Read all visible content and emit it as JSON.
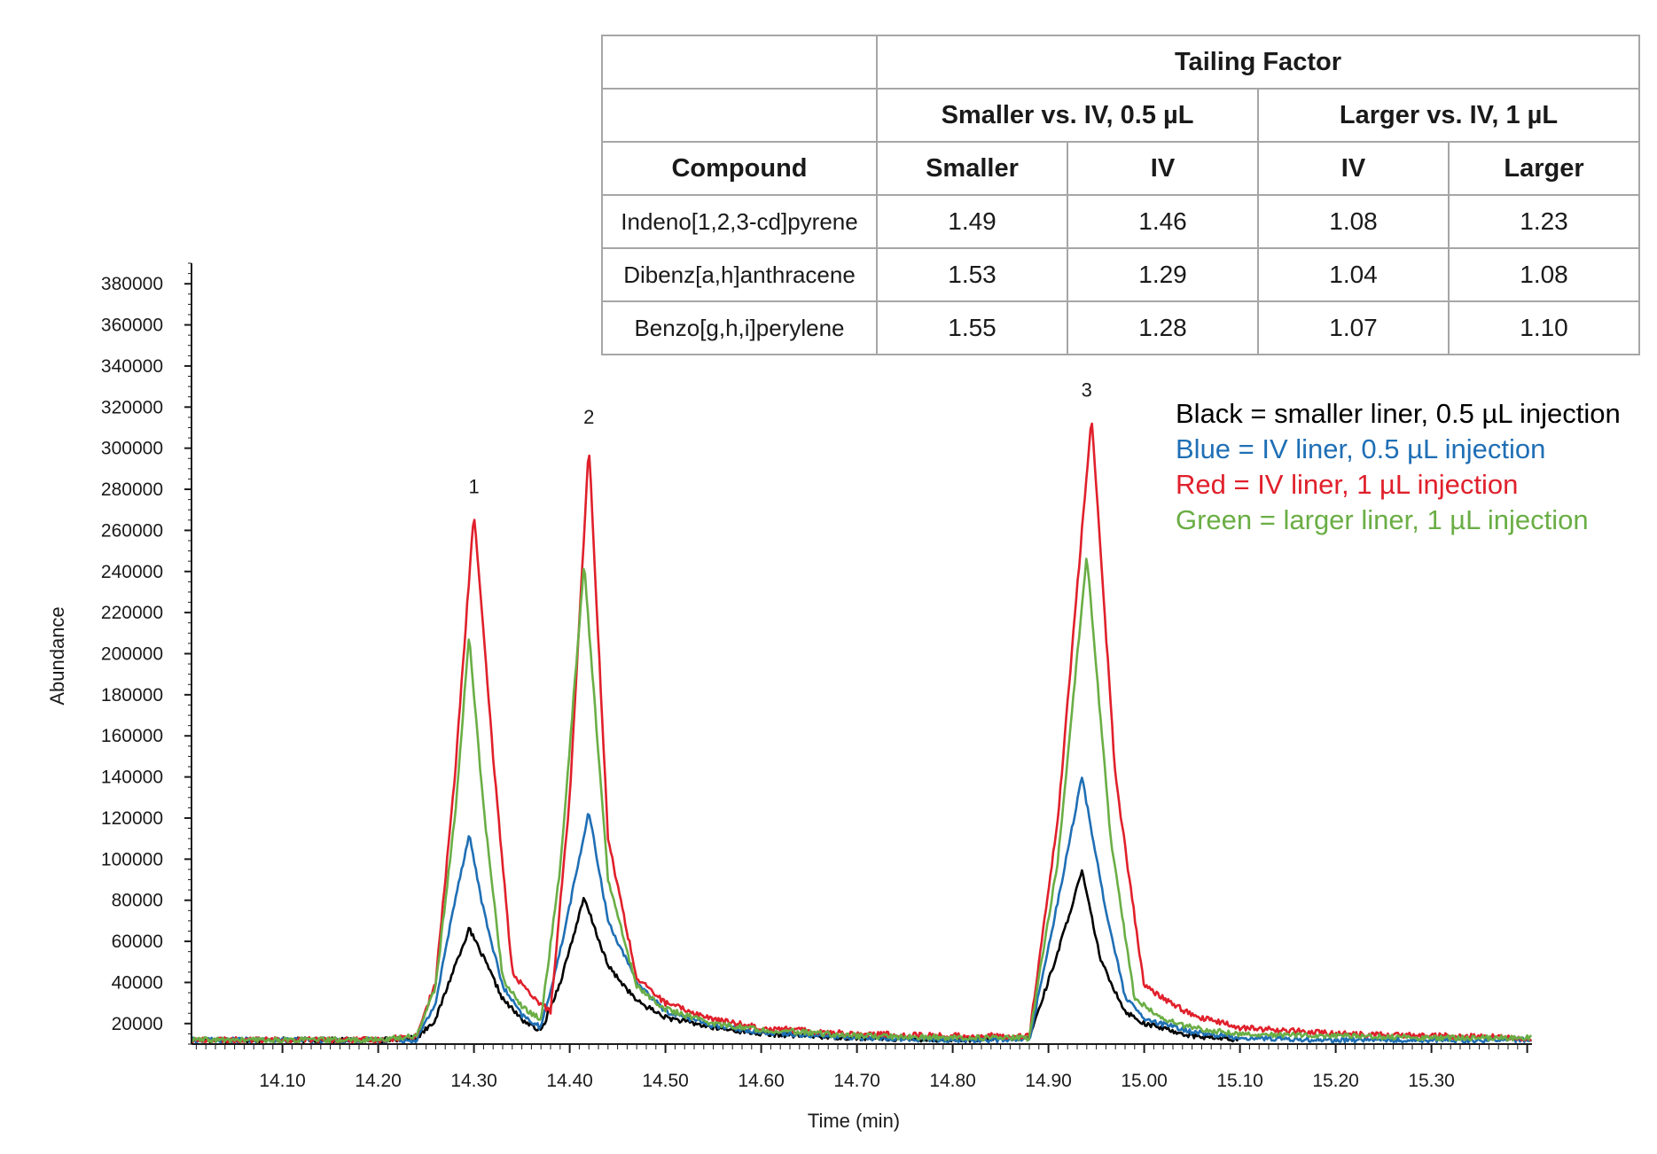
{
  "table": {
    "group_header": "Tailing Factor",
    "subgroups": [
      "Smaller vs. IV, 0.5 µL",
      "Larger vs. IV, 1 µL"
    ],
    "columns": [
      "Compound",
      "Smaller",
      "IV",
      "IV",
      "Larger"
    ],
    "rows": [
      {
        "compound": "Indeno[1,2,3-cd]pyrene",
        "values": [
          "1.49",
          "1.46",
          "1.08",
          "1.23"
        ]
      },
      {
        "compound": "Dibenz[a,h]anthracene",
        "values": [
          "1.53",
          "1.29",
          "1.04",
          "1.08"
        ]
      },
      {
        "compound": "Benzo[g,h,i]perylene",
        "values": [
          "1.55",
          "1.28",
          "1.07",
          "1.10"
        ]
      }
    ]
  },
  "legend": [
    {
      "text": "Black = smaller liner, 0.5 µL injection",
      "color": "#000000"
    },
    {
      "text": "Blue = IV liner, 0.5 µL injection",
      "color": "#1f6fb5"
    },
    {
      "text": "Red = IV liner, 1 µL injection",
      "color": "#e0202b"
    },
    {
      "text": "Green = larger liner, 1 µL injection",
      "color": "#6aae45"
    }
  ],
  "chart_data": {
    "type": "line",
    "xlabel": "Time (min)",
    "ylabel": "Abundance",
    "xlim": [
      14.005,
      15.405
    ],
    "ylim": [
      10000,
      390000
    ],
    "x_ticks": [
      14.1,
      14.2,
      14.3,
      14.4,
      14.5,
      14.6,
      14.7,
      14.8,
      14.9,
      15.0,
      15.1,
      15.2,
      15.3
    ],
    "y_ticks": [
      20000,
      40000,
      60000,
      80000,
      100000,
      120000,
      140000,
      160000,
      180000,
      200000,
      220000,
      240000,
      260000,
      280000,
      300000,
      320000,
      340000,
      360000,
      380000
    ],
    "peak_labels": [
      {
        "label": "1",
        "x": 14.3,
        "y": 278000
      },
      {
        "label": "2",
        "x": 14.42,
        "y": 312000
      },
      {
        "label": "3",
        "x": 14.94,
        "y": 325000
      }
    ],
    "series": [
      {
        "color": "#000000",
        "baseline": 12000,
        "noise": 1200,
        "peaks": [
          {
            "x": 14.295,
            "height": 66000
          },
          {
            "x": 14.415,
            "height": 81000
          },
          {
            "x": 14.935,
            "height": 94000
          }
        ],
        "x": [
          14.005,
          14.05,
          14.1,
          14.15,
          14.2,
          14.24,
          14.26,
          14.28,
          14.295,
          14.31,
          14.33,
          14.35,
          14.37,
          14.39,
          14.415,
          14.44,
          14.47,
          14.5,
          14.55,
          14.6,
          14.7,
          14.8,
          14.88,
          14.91,
          14.935,
          14.955,
          14.98,
          15.0,
          15.05,
          15.1
        ],
        "y": [
          12000,
          12000,
          12000,
          12000,
          12000,
          13000,
          22000,
          48000,
          66000,
          52000,
          32000,
          22000,
          16000,
          40000,
          81000,
          48000,
          31000,
          23000,
          18000,
          15000,
          13000,
          12000,
          13000,
          55000,
          94000,
          50000,
          26000,
          20000,
          14000,
          12000
        ]
      },
      {
        "color": "#1f6fb5",
        "baseline": 12000,
        "noise": 1200,
        "peaks": [
          {
            "x": 14.295,
            "height": 112000
          },
          {
            "x": 14.42,
            "height": 123000
          },
          {
            "x": 14.935,
            "height": 140000
          }
        ],
        "x": [
          14.005,
          14.05,
          14.1,
          14.15,
          14.2,
          14.24,
          14.26,
          14.28,
          14.295,
          14.31,
          14.33,
          14.35,
          14.37,
          14.39,
          14.42,
          14.44,
          14.47,
          14.5,
          14.55,
          14.6,
          14.7,
          14.8,
          14.88,
          14.91,
          14.935,
          14.96,
          14.98,
          15.0,
          15.05,
          15.1,
          15.2,
          15.3,
          15.405
        ],
        "y": [
          12000,
          12000,
          12000,
          12000,
          12000,
          12000,
          30000,
          80000,
          112000,
          75000,
          38000,
          24000,
          18000,
          55000,
          123000,
          70000,
          40000,
          26000,
          19000,
          16000,
          13000,
          12000,
          12000,
          80000,
          140000,
          75000,
          33000,
          22000,
          16000,
          13000,
          12000,
          12000,
          12000
        ]
      },
      {
        "color": "#e0202b",
        "baseline": 13000,
        "noise": 1400,
        "peaks": [
          {
            "x": 14.3,
            "height": 269000
          },
          {
            "x": 14.42,
            "height": 302000
          },
          {
            "x": 14.945,
            "height": 316000
          }
        ],
        "x": [
          14.005,
          14.05,
          14.1,
          14.15,
          14.2,
          14.24,
          14.26,
          14.28,
          14.3,
          14.32,
          14.34,
          14.36,
          14.38,
          14.4,
          14.42,
          14.44,
          14.47,
          14.5,
          14.55,
          14.6,
          14.7,
          14.8,
          14.88,
          14.91,
          14.945,
          14.97,
          15.0,
          15.05,
          15.1,
          15.2,
          15.3,
          15.405
        ],
        "y": [
          12000,
          12000,
          12000,
          12000,
          12000,
          14000,
          40000,
          140000,
          269000,
          150000,
          45000,
          33000,
          26000,
          130000,
          302000,
          110000,
          42000,
          30000,
          22000,
          18000,
          15000,
          14000,
          14000,
          120000,
          316000,
          140000,
          38000,
          24000,
          18000,
          15000,
          14000,
          13000
        ]
      },
      {
        "color": "#6aae45",
        "baseline": 12000,
        "noise": 1300,
        "peaks": [
          {
            "x": 14.295,
            "height": 209000
          },
          {
            "x": 14.415,
            "height": 244000
          },
          {
            "x": 14.94,
            "height": 248000
          }
        ],
        "x": [
          14.005,
          14.05,
          14.1,
          14.15,
          14.2,
          14.24,
          14.26,
          14.28,
          14.295,
          14.31,
          14.33,
          14.35,
          14.37,
          14.39,
          14.415,
          14.44,
          14.47,
          14.5,
          14.55,
          14.6,
          14.7,
          14.8,
          14.88,
          14.91,
          14.94,
          14.965,
          14.99,
          15.02,
          15.05,
          15.1,
          15.2,
          15.3,
          15.405
        ],
        "y": [
          12000,
          12000,
          12000,
          12000,
          12000,
          14000,
          38000,
          120000,
          209000,
          125000,
          42000,
          28000,
          22000,
          95000,
          244000,
          90000,
          38000,
          27000,
          20000,
          17000,
          14000,
          13000,
          13000,
          100000,
          248000,
          110000,
          32000,
          22000,
          18000,
          15000,
          14000,
          13000,
          13000
        ]
      }
    ]
  }
}
